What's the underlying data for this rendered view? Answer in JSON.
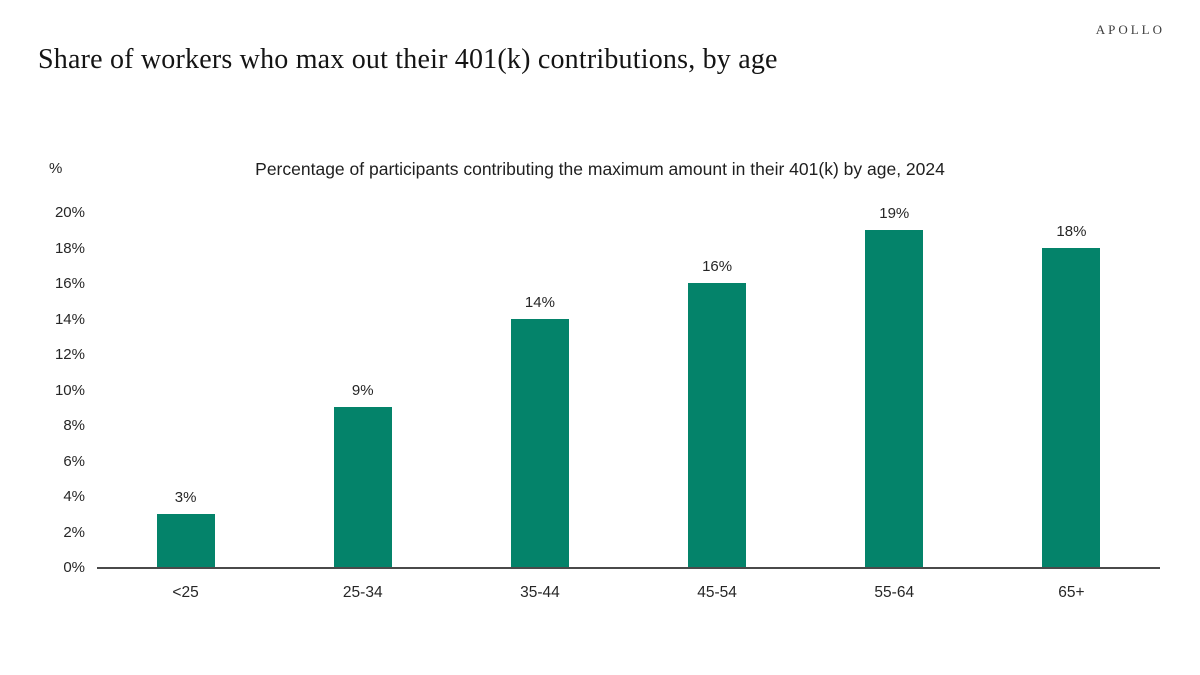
{
  "brand": {
    "logo_text": "APOLLO"
  },
  "header": {
    "title": "Share of workers who max out their 401(k) contributions, by age"
  },
  "chart_data": {
    "type": "bar",
    "title": "Percentage of participants contributing the maximum amount in their 401(k) by age, 2024",
    "categories": [
      "<25",
      "25-34",
      "35-44",
      "45-54",
      "55-64",
      "65+"
    ],
    "values": [
      3,
      9,
      14,
      16,
      19,
      18
    ],
    "data_labels": [
      "3%",
      "9%",
      "14%",
      "16%",
      "19%",
      "18%"
    ],
    "unit_label": "%",
    "xlabel": "",
    "ylabel": "%",
    "ylim": [
      0,
      20
    ],
    "ytick_step": 2,
    "ytick_labels": [
      "0%",
      "2%",
      "4%",
      "6%",
      "8%",
      "10%",
      "12%",
      "14%",
      "16%",
      "18%",
      "20%"
    ],
    "grid": false,
    "legend_position": "none",
    "bar_color": "#04836A",
    "axis_line_color": "#4a4a4a",
    "background_color": "#ffffff"
  }
}
